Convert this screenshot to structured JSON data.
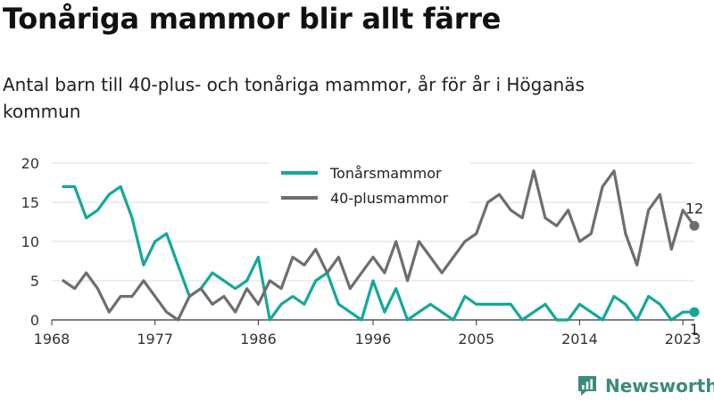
{
  "header": {
    "title": "Tonåriga mammor blir allt färre",
    "subtitle": "Antal barn till 40-plus- och tonåriga mammor, år för år i Höganäs kommun"
  },
  "brand": {
    "name": "Newsworthy"
  },
  "chart_data": {
    "type": "line",
    "title": "Tonåriga mammor blir allt färre",
    "subtitle": "Antal barn till 40-plus- och tonåriga mammor, år för år i Höganäs kommun",
    "xlabel": "",
    "ylabel": "",
    "xlim": [
      1968,
      2024
    ],
    "ylim": [
      0,
      20
    ],
    "x_ticks": [
      "1968",
      "1977",
      "1986",
      "1996",
      "2005",
      "2014",
      "2023"
    ],
    "y_ticks": [
      "0",
      "5",
      "10",
      "15",
      "20"
    ],
    "grid": "horizontal",
    "legend_position": "top-center",
    "x": [
      1969,
      1970,
      1971,
      1972,
      1973,
      1974,
      1975,
      1976,
      1977,
      1978,
      1979,
      1980,
      1981,
      1982,
      1983,
      1984,
      1985,
      1986,
      1987,
      1988,
      1989,
      1990,
      1991,
      1992,
      1993,
      1994,
      1995,
      1996,
      1997,
      1998,
      1999,
      2000,
      2001,
      2002,
      2003,
      2004,
      2005,
      2006,
      2007,
      2008,
      2009,
      2010,
      2011,
      2012,
      2013,
      2014,
      2015,
      2016,
      2017,
      2018,
      2019,
      2020,
      2021,
      2022,
      2023,
      2024
    ],
    "series": [
      {
        "name": "Tonårsmammor",
        "color": "#14a89a",
        "values": [
          17,
          17,
          13,
          14,
          16,
          17,
          13,
          7,
          10,
          11,
          7,
          3,
          4,
          6,
          5,
          4,
          5,
          8,
          0,
          2,
          3,
          2,
          5,
          6,
          2,
          1,
          0,
          5,
          1,
          4,
          0,
          1,
          2,
          1,
          0,
          3,
          2,
          2,
          2,
          2,
          0,
          1,
          2,
          0,
          0,
          2,
          1,
          0,
          3,
          2,
          0,
          3,
          2,
          0,
          1,
          1
        ],
        "end_label": "1"
      },
      {
        "name": "40-plusmammor",
        "color": "#6e6e70",
        "values": [
          5,
          4,
          6,
          4,
          1,
          3,
          3,
          5,
          3,
          1,
          0,
          3,
          4,
          2,
          3,
          1,
          4,
          2,
          5,
          4,
          8,
          7,
          9,
          6,
          8,
          4,
          6,
          8,
          6,
          10,
          5,
          10,
          8,
          6,
          8,
          10,
          11,
          15,
          16,
          14,
          13,
          19,
          13,
          12,
          14,
          10,
          11,
          17,
          19,
          11,
          7,
          14,
          16,
          9,
          14,
          12
        ],
        "end_label": "12"
      }
    ]
  }
}
